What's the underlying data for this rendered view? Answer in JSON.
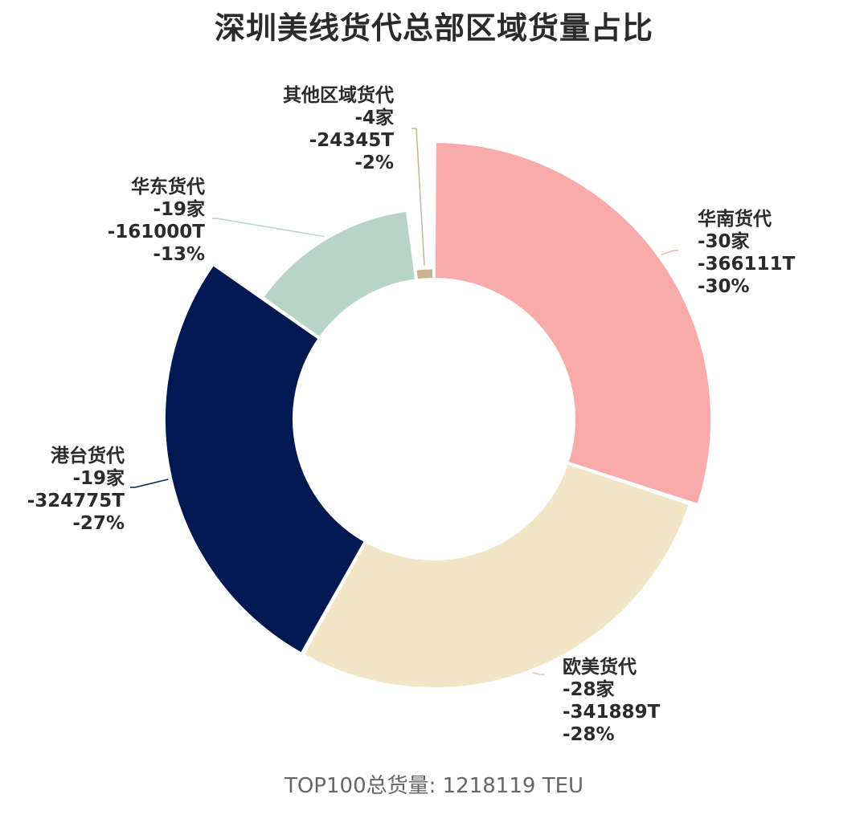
{
  "chart_data": {
    "type": "pie",
    "title": "深圳美线货代总部区域货量占比",
    "footer": "TOP100总货量: 1218119 TEU",
    "slices": [
      {
        "name": "华南货代",
        "count": "-30家",
        "volume": "-366111T",
        "percent": "-30%",
        "value": 366111,
        "color": "#F9AAAA",
        "labelSide": "right"
      },
      {
        "name": "欧美货代",
        "count": "-28家",
        "volume": "-341889T",
        "percent": "-28%",
        "value": 341889,
        "color": "#F3E6C7",
        "labelSide": "right"
      },
      {
        "name": "港台货代",
        "count": "-19家",
        "volume": "-324775T",
        "percent": "-27%",
        "value": 324775,
        "color": "#021852",
        "labelSide": "left"
      },
      {
        "name": "华东货代",
        "count": "-19家",
        "volume": "-161000T",
        "percent": "-13%",
        "value": 161000,
        "color": "#B8D4C8",
        "labelSide": "left"
      },
      {
        "name": "其他区域货代",
        "count": "-4家",
        "volume": "-24345T",
        "percent": "-2%",
        "value": 24345,
        "color": "#C9B38F",
        "labelSide": "left"
      }
    ]
  }
}
